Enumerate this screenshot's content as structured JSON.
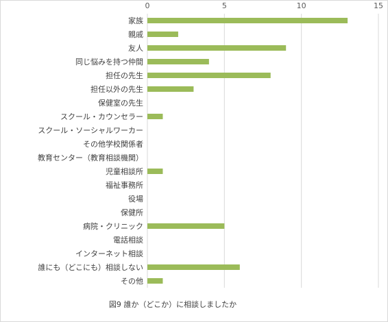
{
  "chart_data": {
    "type": "bar",
    "orientation": "horizontal",
    "title": "図9 誰か（どこか）に相談しましたか",
    "categories": [
      "家族",
      "親戚",
      "友人",
      "同じ悩みを持つ仲間",
      "担任の先生",
      "担任以外の先生",
      "保健室の先生",
      "スクール・カウンセラー",
      "スクール・ソーシャルワーカー",
      "その他学校関係者",
      "教育センター（教育相談機関）",
      "児童相談所",
      "福祉事務所",
      "役場",
      "保健所",
      "病院・クリニック",
      "電話相談",
      "インターネット相談",
      "誰にも（どこにも）相談しない",
      "その他"
    ],
    "values": [
      13,
      2,
      9,
      4,
      8,
      3,
      0,
      1,
      0,
      0,
      0,
      1,
      0,
      0,
      0,
      5,
      0,
      0,
      6,
      1
    ],
    "xlim": [
      0,
      15
    ],
    "xticks": [
      0,
      5,
      10,
      15
    ],
    "xaxis_position": "top",
    "grid": true,
    "legend": "none",
    "bar_color": "#9bbb59",
    "grid_color": "#d9d9d9"
  }
}
